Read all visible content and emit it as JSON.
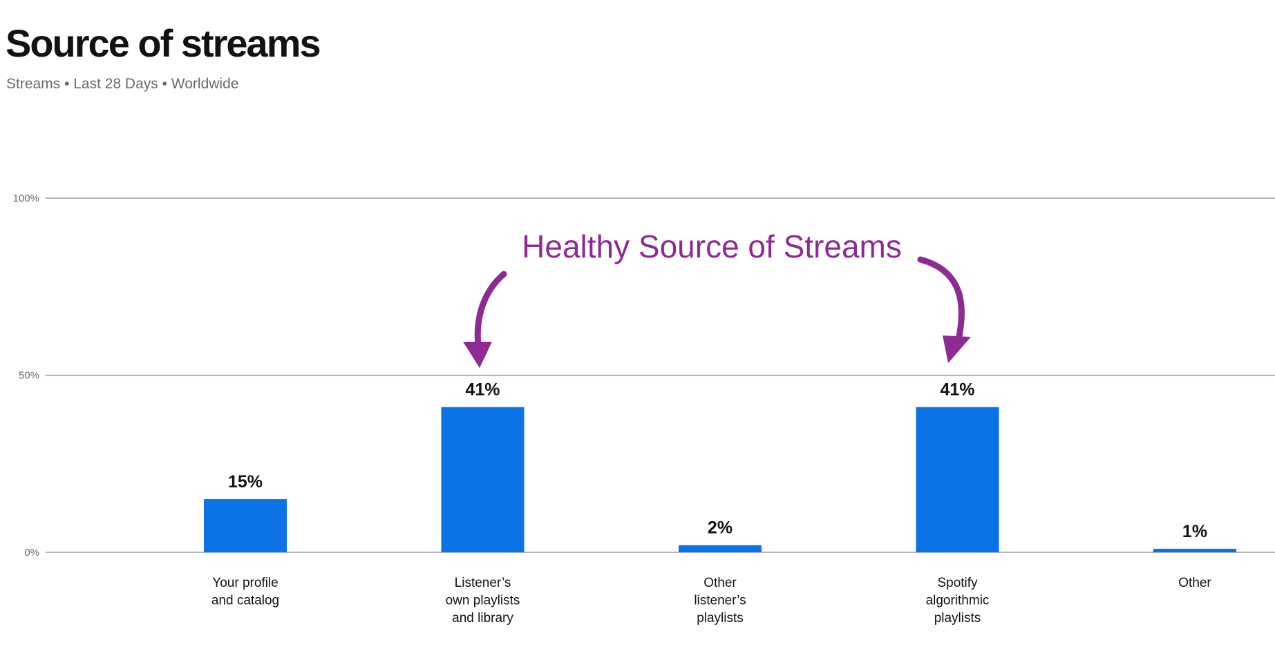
{
  "header": {
    "title": "Source of streams",
    "subtitle": "Streams • Last 28 Days • Worldwide"
  },
  "colors": {
    "bar": "#0b73e6",
    "grid": "#8a8a8a",
    "annotation": "#8e2a94"
  },
  "chart_data": {
    "type": "bar",
    "title": "Source of streams",
    "subtitle": "Streams • Last 28 Days • Worldwide",
    "categories": [
      [
        "Your profile",
        "and catalog"
      ],
      [
        "Listener’s",
        "own playlists",
        "and library"
      ],
      [
        "Other",
        "listener’s",
        "playlists"
      ],
      [
        "Spotify",
        "algorithmic",
        "playlists"
      ],
      [
        "Other"
      ]
    ],
    "values": [
      15,
      41,
      2,
      41,
      1
    ],
    "value_labels": [
      "15%",
      "41%",
      "2%",
      "41%",
      "1%"
    ],
    "ylim": [
      0,
      100
    ],
    "yticks": [
      0,
      50,
      100
    ],
    "ytick_labels": [
      "0%",
      "50%",
      "100%"
    ],
    "xlabel": "",
    "ylabel": "",
    "grid": true,
    "annotations": [
      {
        "text": "Healthy Source of Streams",
        "points_to": [
          "Listener’s own playlists and library",
          "Spotify algorithmic playlists"
        ]
      }
    ]
  }
}
